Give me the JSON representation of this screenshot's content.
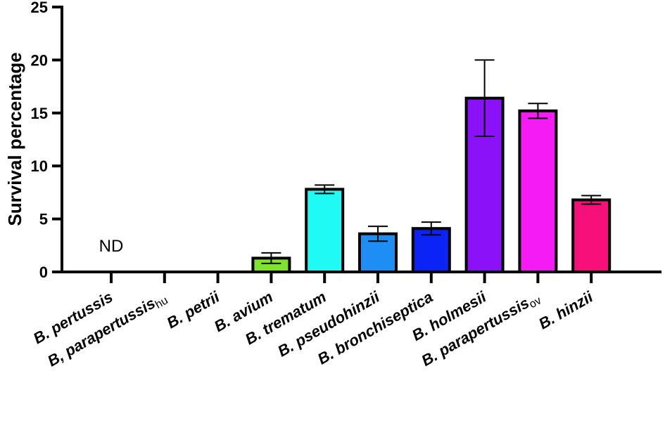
{
  "chart_data": {
    "type": "bar",
    "ylabel": "Survival  percentage",
    "ylim": [
      0,
      25
    ],
    "yticks": [
      "0",
      "5",
      "10",
      "15",
      "20",
      "25"
    ],
    "categories": [
      {
        "label": "B. pertussis",
        "sub": ""
      },
      {
        "label": "B, parapertussis",
        "sub": "hu"
      },
      {
        "label": "B. petrii",
        "sub": ""
      },
      {
        "label": "B. avium",
        "sub": ""
      },
      {
        "label": "B. trematum",
        "sub": ""
      },
      {
        "label": "B. pseudohinzii",
        "sub": ""
      },
      {
        "label": "B. bronchiseptica",
        "sub": ""
      },
      {
        "label": "B. holmesii",
        "sub": ""
      },
      {
        "label": "B. parapertussis",
        "sub": "ov"
      },
      {
        "label": "B. hinzii",
        "sub": ""
      }
    ],
    "values": [
      null,
      null,
      null,
      1.3,
      7.8,
      3.6,
      4.1,
      16.4,
      15.2,
      6.8
    ],
    "errors": [
      null,
      null,
      null,
      0.5,
      0.4,
      0.7,
      0.6,
      3.6,
      0.7,
      0.4
    ],
    "colors": [
      null,
      null,
      null,
      "#7ee52a",
      "#1ffaf4",
      "#1e8ef5",
      "#0b23f4",
      "#8b12f8",
      "#f51bf5",
      "#f7107a"
    ],
    "annotation": "ND"
  }
}
